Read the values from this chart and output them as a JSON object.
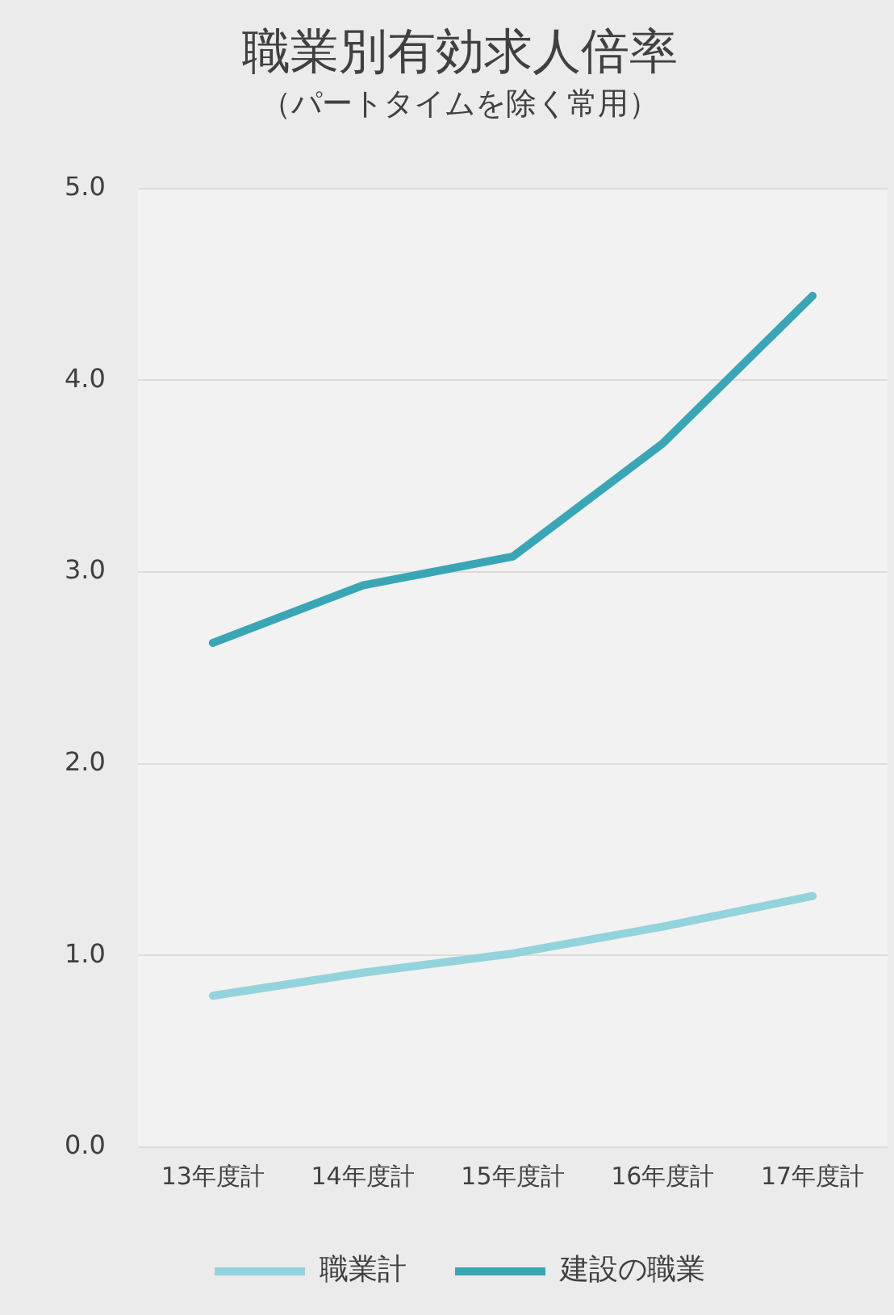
{
  "chart_data": {
    "type": "line",
    "title": "職業別有効求人倍率",
    "subtitle": "（パートタイムを除く常用）",
    "categories": [
      "13年度計",
      "14年度計",
      "15年度計",
      "16年度計",
      "17年度計"
    ],
    "series": [
      {
        "name": "職業計",
        "color": "#93d3dc",
        "values": [
          0.79,
          0.91,
          1.01,
          1.15,
          1.31
        ]
      },
      {
        "name": "建設の職業",
        "color": "#3aa6b5",
        "values": [
          2.63,
          2.93,
          3.08,
          3.67,
          4.44
        ]
      }
    ],
    "ylim": [
      0,
      5
    ],
    "yticks": [
      {
        "value": 0,
        "label": "0.0"
      },
      {
        "value": 1,
        "label": "1.0"
      },
      {
        "value": 2,
        "label": "2.0"
      },
      {
        "value": 3,
        "label": "3.0"
      },
      {
        "value": 4,
        "label": "4.0"
      },
      {
        "value": 5,
        "label": "5.0"
      }
    ],
    "grid": "y",
    "legend": "bottom",
    "marker": "none",
    "line_style": "solid"
  }
}
